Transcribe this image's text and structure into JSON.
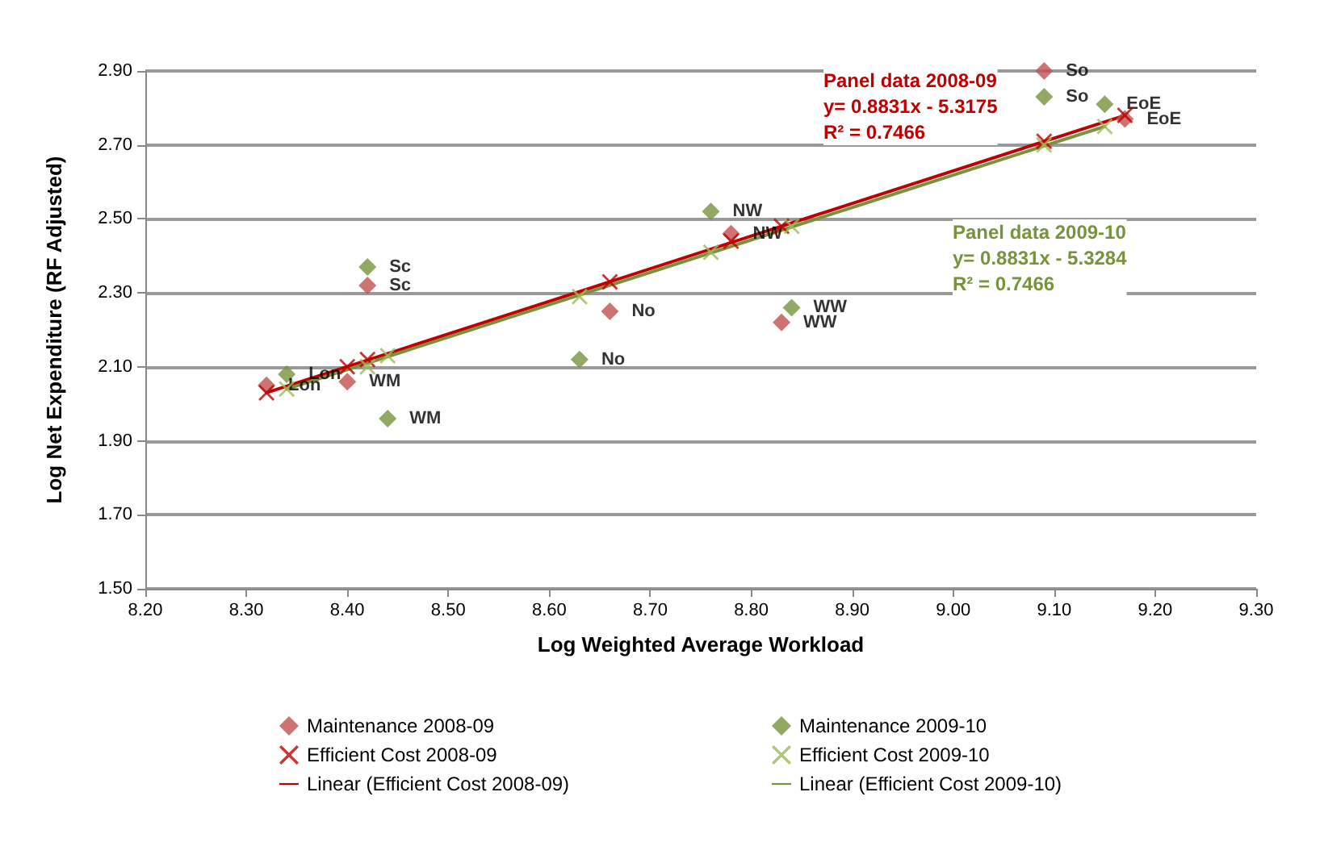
{
  "chart_data": {
    "type": "scatter",
    "xlabel": "Log Weighted Average Workload",
    "ylabel": "Log Net Expenditure (RF Adjusted)",
    "xlim": [
      8.2,
      9.3
    ],
    "xticks": [
      {
        "value": 8.2,
        "label": "8.20"
      },
      {
        "value": 8.3,
        "label": "8.30"
      },
      {
        "value": 8.4,
        "label": "8.40"
      },
      {
        "value": 8.5,
        "label": "8.50"
      },
      {
        "value": 8.6,
        "label": "8.60"
      },
      {
        "value": 8.7,
        "label": "8.70"
      },
      {
        "value": 8.8,
        "label": "8.80"
      },
      {
        "value": 8.9,
        "label": "8.90"
      },
      {
        "value": 9.0,
        "label": "9.00"
      },
      {
        "value": 9.1,
        "label": "9.10"
      },
      {
        "value": 9.2,
        "label": "9.20"
      },
      {
        "value": 9.3,
        "label": "9.30"
      }
    ],
    "ylim": [
      1.5,
      2.9
    ],
    "yticks": [
      {
        "value": 1.5,
        "label": "1.50"
      },
      {
        "value": 1.7,
        "label": "1.70"
      },
      {
        "value": 1.9,
        "label": "1.90"
      },
      {
        "value": 2.1,
        "label": "2.10"
      },
      {
        "value": 2.3,
        "label": "2.30"
      },
      {
        "value": 2.5,
        "label": "2.50"
      },
      {
        "value": 2.7,
        "label": "2.70"
      },
      {
        "value": 2.9,
        "label": "2.90"
      }
    ],
    "grid": "y",
    "legend": "bottom",
    "annotations": [
      "Panel data 2008-09\ny= 0.8831x - 5.3175\nR² = 0.7466",
      "Panel data 2009-10\ny= 0.8831x - 5.3284\nR² = 0.7466"
    ],
    "series": [
      {
        "name": "Maintenance 2008-09",
        "marker": "diamond",
        "color": "#c0504d",
        "x": [
          8.32,
          8.4,
          8.42,
          8.66,
          8.78,
          8.83,
          9.09,
          9.17
        ],
        "values": [
          2.05,
          2.06,
          2.32,
          2.25,
          2.46,
          2.22,
          2.9,
          2.77
        ],
        "value_labels": [
          "Lon",
          "WM",
          "Sc",
          "No",
          "NW",
          "WW",
          "So",
          "EoE"
        ]
      },
      {
        "name": "Maintenance 2009-10",
        "marker": "diamond",
        "color": "#77933c",
        "x": [
          8.34,
          8.44,
          8.42,
          8.63,
          8.76,
          8.84,
          9.09,
          9.15
        ],
        "values": [
          2.08,
          1.96,
          2.37,
          2.12,
          2.52,
          2.26,
          2.83,
          2.81
        ],
        "value_labels": [
          "Lon",
          "WM",
          "Sc",
          "No",
          "NW",
          "WW",
          "So",
          "EoE"
        ]
      },
      {
        "name": "Efficient Cost 2008-09",
        "marker": "cross",
        "color": "#c00000",
        "x": [
          8.32,
          8.4,
          8.42,
          8.66,
          8.78,
          8.83,
          9.09,
          9.17
        ],
        "values": [
          2.03,
          2.1,
          2.12,
          2.33,
          2.44,
          2.48,
          2.71,
          2.78
        ]
      },
      {
        "name": "Efficient Cost 2009-10",
        "marker": "cross",
        "color": "#9bbb59",
        "x": [
          8.34,
          8.44,
          8.42,
          8.63,
          8.76,
          8.84,
          9.09,
          9.15
        ],
        "values": [
          2.04,
          2.13,
          2.1,
          2.29,
          2.41,
          2.48,
          2.7,
          2.75
        ]
      },
      {
        "name": "Linear (Efficient Cost 2008-09)",
        "type": "line",
        "marker": "none",
        "line_style": "solid",
        "color": "#c00000",
        "x": [
          8.32,
          9.17
        ],
        "values": [
          2.03,
          2.78
        ]
      },
      {
        "name": "Linear (Efficient Cost 2009-10)",
        "type": "line",
        "marker": "none",
        "line_style": "solid",
        "color": "#77933c",
        "x": [
          8.34,
          9.15
        ],
        "values": [
          2.04,
          2.75
        ]
      }
    ]
  }
}
